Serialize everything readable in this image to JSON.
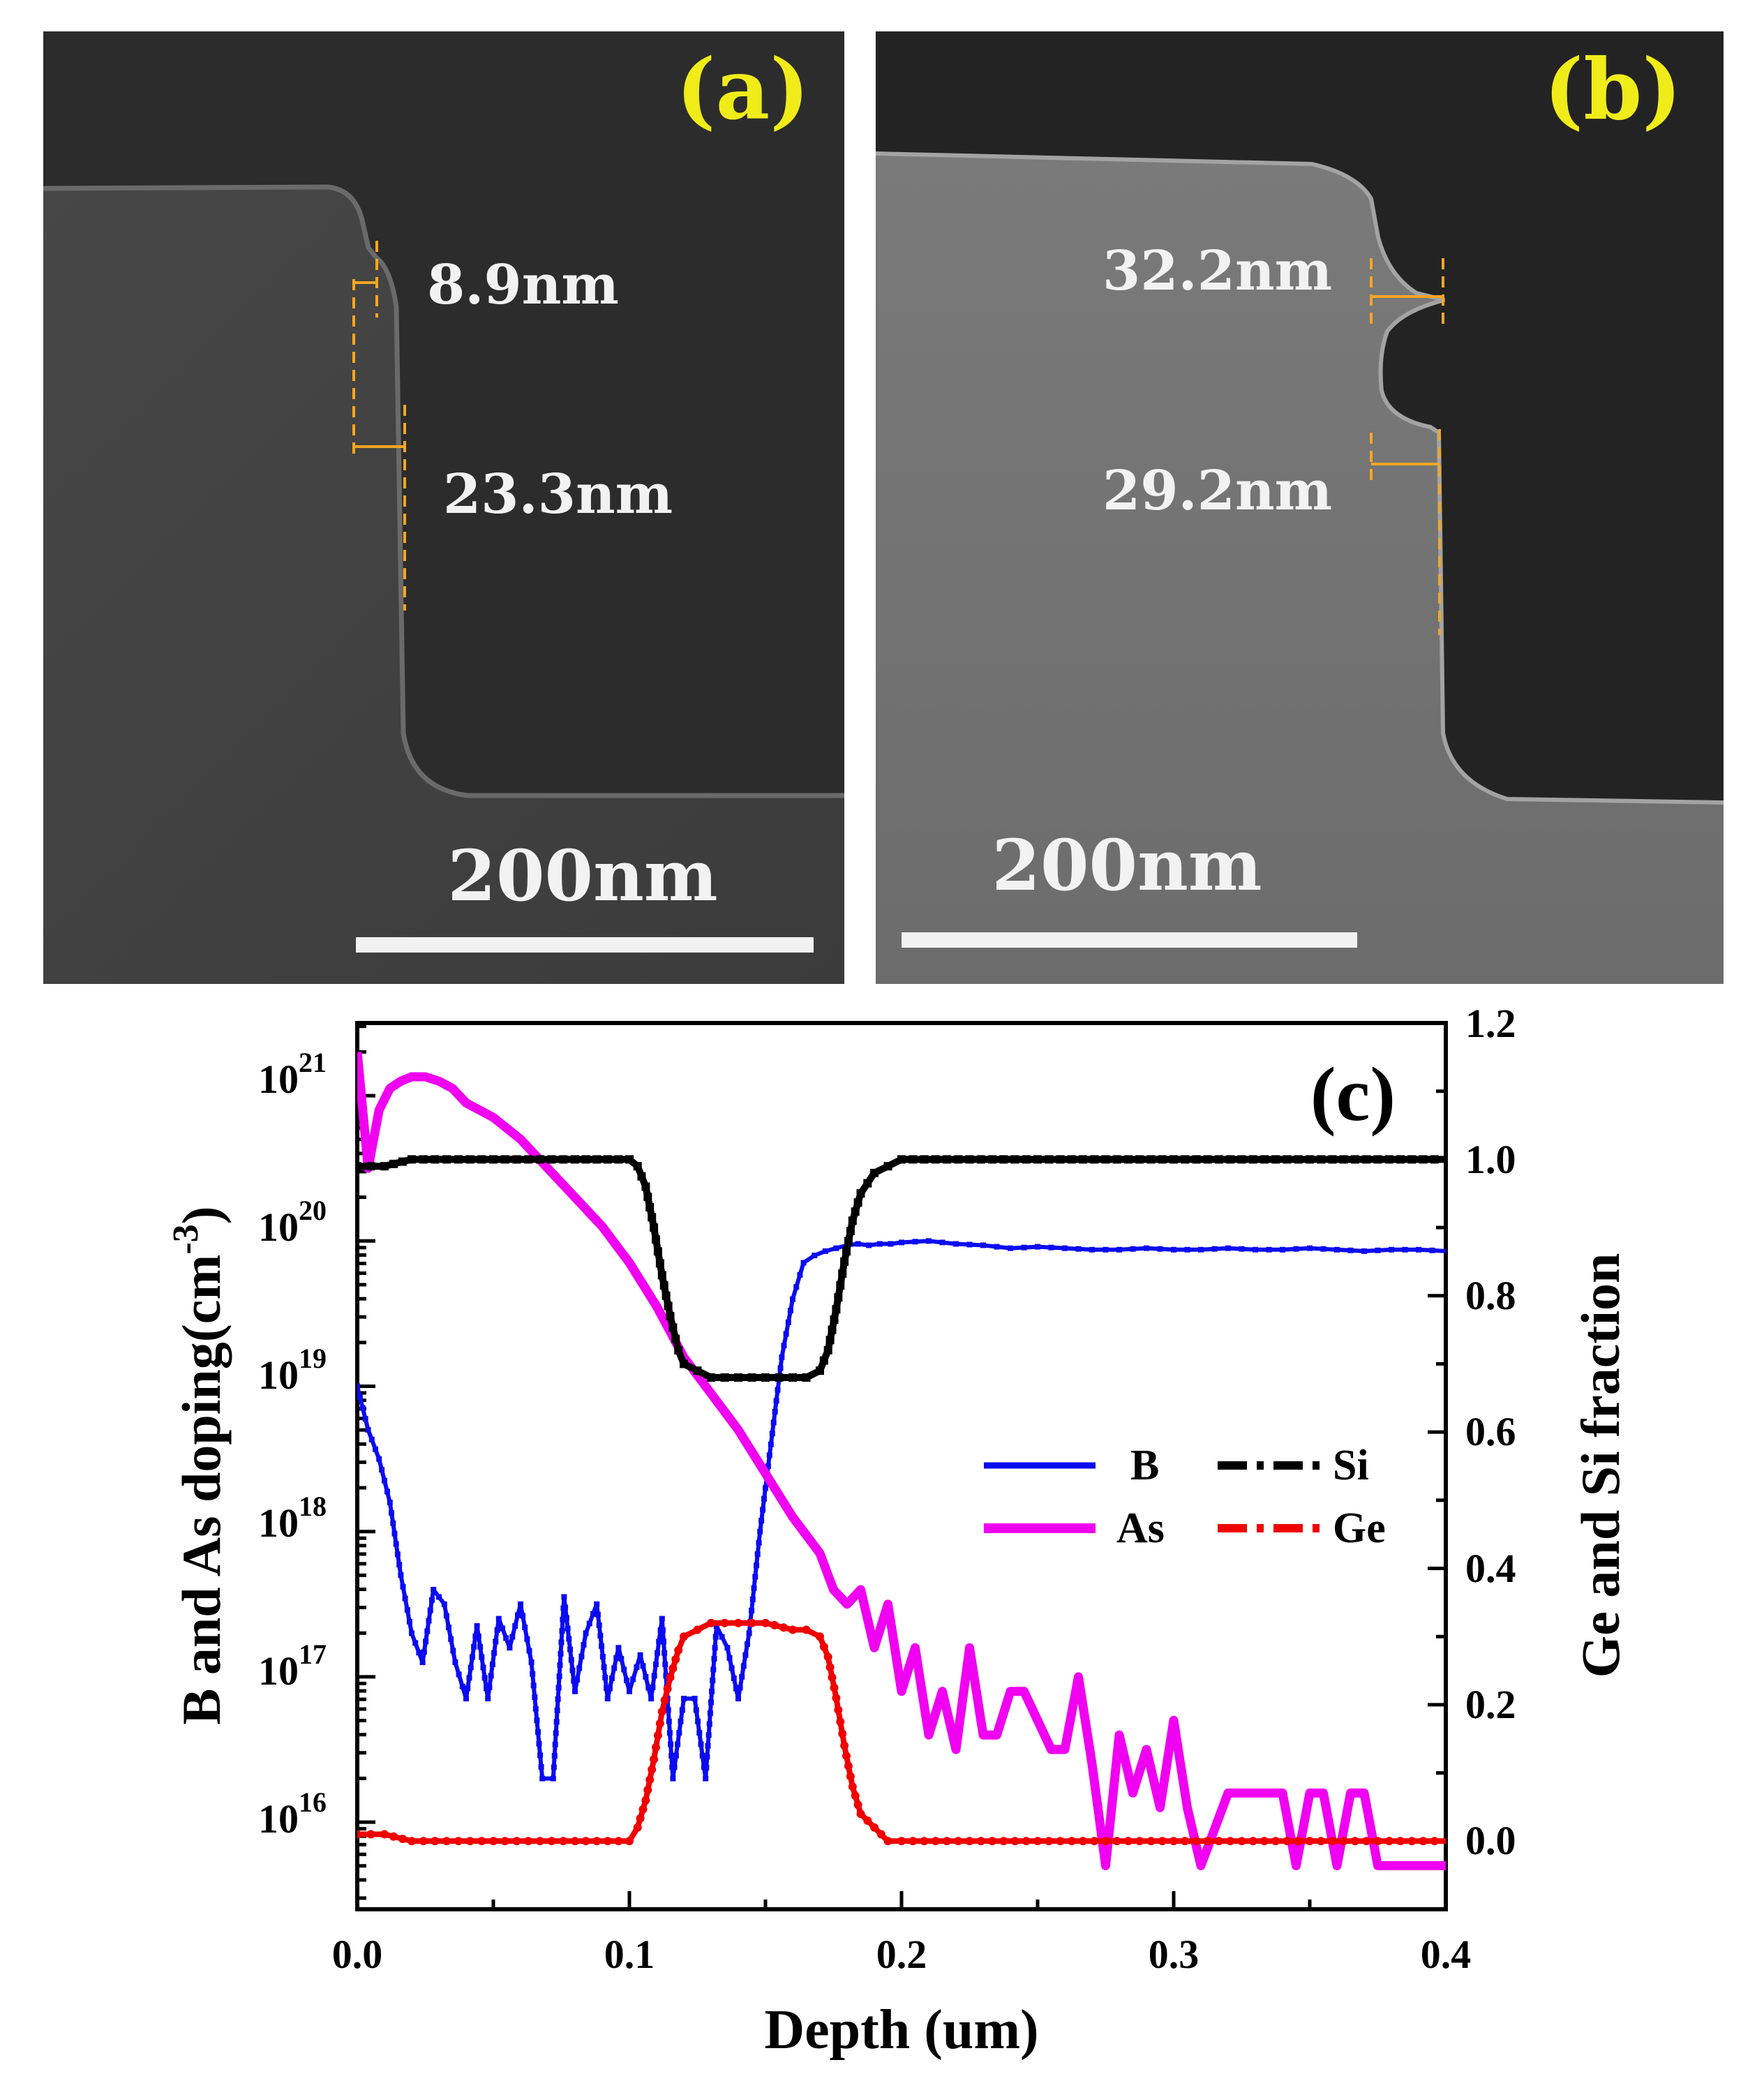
{
  "panel_a": {
    "label": "(a)",
    "measurements": [
      "8.9nm",
      "23.3nm"
    ],
    "scalebar": "200nm"
  },
  "panel_b": {
    "label": "(b)",
    "measurements": [
      "32.2nm",
      "29.2nm"
    ],
    "scalebar": "200nm"
  },
  "colors": {
    "label_yellow": "#f0ec1a",
    "marker_orange": "#f5a623",
    "B": "#0b0bf0",
    "As": "#f000f0",
    "Si": "#000000",
    "Ge": "#f00000"
  },
  "chart_data": {
    "type": "line",
    "panel_label": "(c)",
    "xlabel": "Depth (um)",
    "ylabel_left": "B and As doping(cm",
    "ylabel_left_sup": "-3",
    "ylabel_left_close": ")",
    "ylabel_right": "Ge and Si fraction",
    "xlim": [
      0,
      0.4
    ],
    "ylim_left_log10": [
      15.4,
      21.5
    ],
    "ylim_right": [
      -0.1,
      1.2
    ],
    "x_ticks": [
      "0.0",
      "0.1",
      "0.2",
      "0.3",
      "0.4"
    ],
    "y_left_ticks": [
      {
        "base": "10",
        "exp": "16"
      },
      {
        "base": "10",
        "exp": "17"
      },
      {
        "base": "10",
        "exp": "18"
      },
      {
        "base": "10",
        "exp": "19"
      },
      {
        "base": "10",
        "exp": "20"
      },
      {
        "base": "10",
        "exp": "21"
      }
    ],
    "y_right_ticks": [
      "0.0",
      "0.2",
      "0.4",
      "0.6",
      "0.8",
      "1.0",
      "1.2"
    ],
    "legend": [
      "B",
      "As",
      "Si",
      "Ge"
    ],
    "series": [
      {
        "name": "B",
        "axis": "left",
        "unit": "log10(cm^-3)",
        "x": [
          0.0,
          0.004,
          0.008,
          0.012,
          0.016,
          0.02,
          0.024,
          0.028,
          0.032,
          0.036,
          0.04,
          0.044,
          0.048,
          0.052,
          0.056,
          0.06,
          0.064,
          0.068,
          0.072,
          0.076,
          0.08,
          0.084,
          0.088,
          0.092,
          0.096,
          0.1,
          0.104,
          0.108,
          0.112,
          0.116,
          0.12,
          0.124,
          0.128,
          0.132,
          0.136,
          0.14,
          0.144,
          0.148,
          0.152,
          0.156,
          0.16,
          0.164,
          0.168,
          0.172,
          0.176,
          0.18,
          0.184,
          0.188,
          0.192,
          0.196,
          0.2,
          0.21,
          0.22,
          0.23,
          0.24,
          0.25,
          0.26,
          0.27,
          0.28,
          0.29,
          0.3,
          0.31,
          0.32,
          0.33,
          0.34,
          0.35,
          0.36,
          0.37,
          0.38,
          0.39,
          0.4
        ],
        "y": [
          19.0,
          18.7,
          18.5,
          18.2,
          17.7,
          17.3,
          17.1,
          17.6,
          17.5,
          17.1,
          16.85,
          17.35,
          16.85,
          17.4,
          17.2,
          17.5,
          17.1,
          16.3,
          16.3,
          17.55,
          16.9,
          17.3,
          17.5,
          16.85,
          17.2,
          16.9,
          17.15,
          16.85,
          17.4,
          16.3,
          16.85,
          16.85,
          16.3,
          17.35,
          17.2,
          16.85,
          17.3,
          18.0,
          18.6,
          19.2,
          19.6,
          19.85,
          19.9,
          19.93,
          19.95,
          19.97,
          19.98,
          19.97,
          19.98,
          19.98,
          19.99,
          20.0,
          19.98,
          19.97,
          19.95,
          19.96,
          19.95,
          19.94,
          19.94,
          19.95,
          19.94,
          19.94,
          19.95,
          19.94,
          19.94,
          19.95,
          19.94,
          19.93,
          19.94,
          19.94,
          19.93
        ]
      },
      {
        "name": "As",
        "axis": "left",
        "unit": "log10(cm^-3)",
        "x": [
          0.0,
          0.004,
          0.008,
          0.012,
          0.016,
          0.02,
          0.025,
          0.03,
          0.035,
          0.04,
          0.05,
          0.06,
          0.07,
          0.08,
          0.09,
          0.1,
          0.11,
          0.12,
          0.13,
          0.14,
          0.15,
          0.16,
          0.17,
          0.175,
          0.18,
          0.185,
          0.19,
          0.195,
          0.2,
          0.205,
          0.21,
          0.215,
          0.22,
          0.225,
          0.23,
          0.235,
          0.24,
          0.245,
          0.25,
          0.255,
          0.26,
          0.265,
          0.27,
          0.275,
          0.28,
          0.285,
          0.29,
          0.295,
          0.3,
          0.305,
          0.31,
          0.32,
          0.33,
          0.34,
          0.345,
          0.35,
          0.355,
          0.36,
          0.365,
          0.37,
          0.375,
          0.38,
          0.39,
          0.4
        ],
        "y": [
          21.3,
          20.5,
          20.9,
          21.05,
          21.1,
          21.13,
          21.13,
          21.1,
          21.05,
          20.95,
          20.85,
          20.7,
          20.5,
          20.3,
          20.1,
          19.85,
          19.55,
          19.2,
          18.95,
          18.7,
          18.4,
          18.1,
          17.85,
          17.6,
          17.5,
          17.6,
          17.2,
          17.5,
          16.9,
          17.2,
          16.6,
          16.9,
          16.5,
          17.2,
          16.6,
          16.6,
          16.9,
          16.9,
          16.7,
          16.5,
          16.5,
          17.0,
          16.4,
          15.7,
          16.6,
          16.2,
          16.5,
          16.1,
          16.7,
          16.1,
          15.7,
          16.2,
          16.2,
          16.2,
          15.7,
          16.2,
          16.2,
          15.7,
          16.2,
          16.2,
          15.7,
          15.7,
          15.7,
          15.7
        ]
      },
      {
        "name": "Si",
        "axis": "right",
        "unit": "fraction",
        "x": [
          0.0,
          0.01,
          0.02,
          0.05,
          0.08,
          0.1,
          0.103,
          0.106,
          0.109,
          0.112,
          0.115,
          0.118,
          0.12,
          0.125,
          0.13,
          0.14,
          0.15,
          0.16,
          0.165,
          0.17,
          0.173,
          0.176,
          0.179,
          0.182,
          0.185,
          0.19,
          0.195,
          0.2,
          0.25,
          0.3,
          0.35,
          0.4
        ],
        "y": [
          0.99,
          0.99,
          1.0,
          1.0,
          1.0,
          1.0,
          0.99,
          0.96,
          0.9,
          0.83,
          0.77,
          0.72,
          0.7,
          0.69,
          0.68,
          0.68,
          0.68,
          0.68,
          0.68,
          0.69,
          0.72,
          0.78,
          0.85,
          0.91,
          0.95,
          0.98,
          0.99,
          1.0,
          1.0,
          1.0,
          1.0,
          1.0
        ]
      },
      {
        "name": "Ge",
        "axis": "right",
        "unit": "fraction",
        "x": [
          0.0,
          0.01,
          0.02,
          0.05,
          0.08,
          0.1,
          0.103,
          0.106,
          0.109,
          0.112,
          0.115,
          0.118,
          0.12,
          0.125,
          0.13,
          0.14,
          0.15,
          0.16,
          0.165,
          0.17,
          0.173,
          0.176,
          0.179,
          0.182,
          0.185,
          0.19,
          0.195,
          0.2,
          0.25,
          0.3,
          0.35,
          0.4
        ],
        "y": [
          0.01,
          0.01,
          0.0,
          0.0,
          0.0,
          0.0,
          0.02,
          0.06,
          0.12,
          0.19,
          0.24,
          0.28,
          0.3,
          0.31,
          0.32,
          0.32,
          0.32,
          0.31,
          0.31,
          0.3,
          0.27,
          0.21,
          0.14,
          0.08,
          0.04,
          0.02,
          0.0,
          0.0,
          0.0,
          0.0,
          0.0,
          0.0
        ]
      }
    ]
  }
}
